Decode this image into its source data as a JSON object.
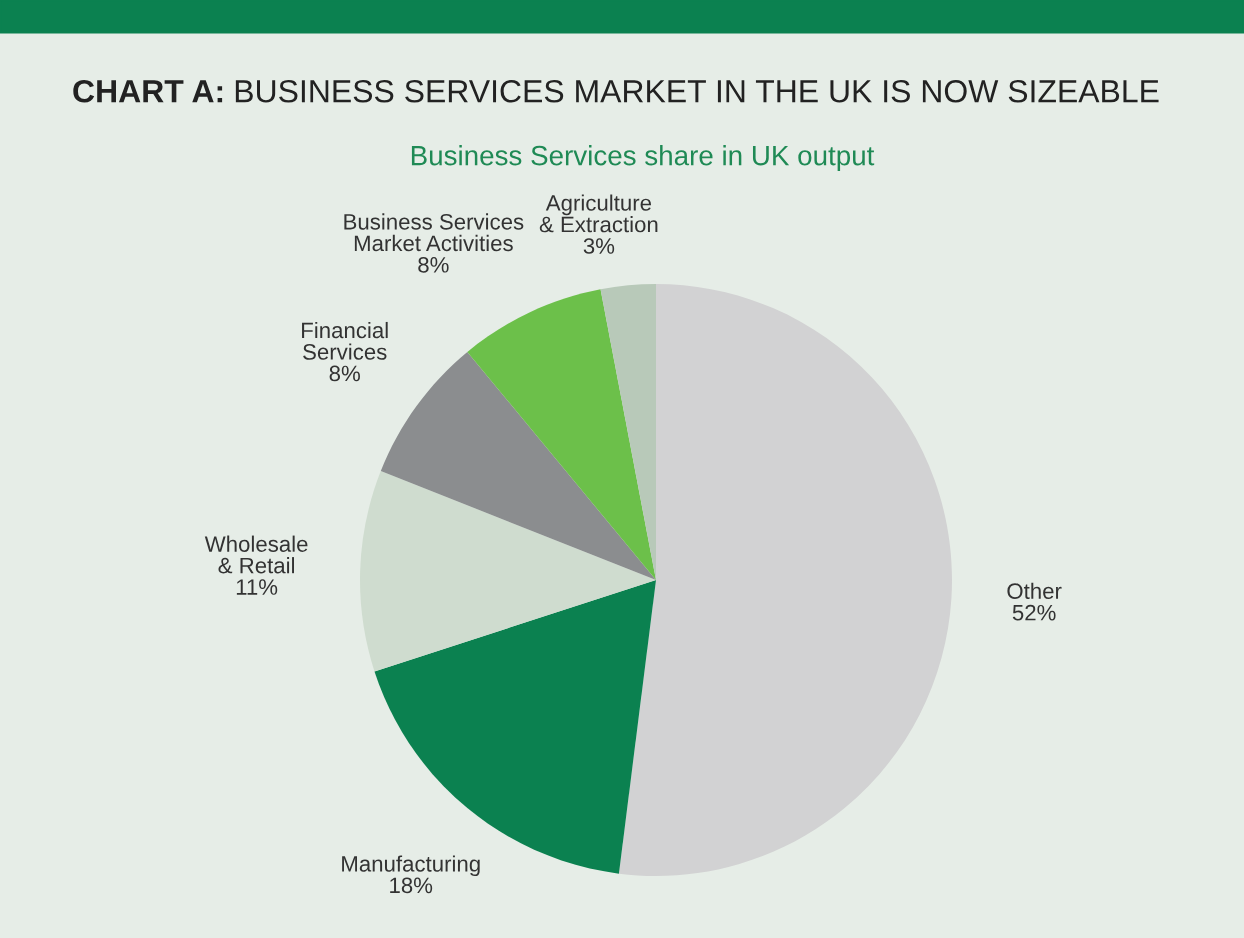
{
  "chart_data": {
    "type": "pie",
    "title": "CHART A: BUSINESS SERVICES MARKET IN THE UK IS NOW SIZEABLE",
    "subtitle": "Business Services share in UK output",
    "categories": [
      "Other",
      "Manufacturing",
      "Wholesale\n& Retail",
      "Financial\nServices",
      "Business Services\nMarket Activities",
      "Agriculture\n& Extraction"
    ],
    "values": [
      52,
      18,
      11,
      8,
      8,
      3
    ],
    "value_labels": [
      "52%",
      "18%",
      "11%",
      "8%",
      "8%",
      "3%"
    ],
    "colors": [
      "#d2d2d3",
      "#0b8150",
      "#cfdccf",
      "#8b8d8f",
      "#6cc04a",
      "#b8c9b9"
    ],
    "legend": false
  }
}
